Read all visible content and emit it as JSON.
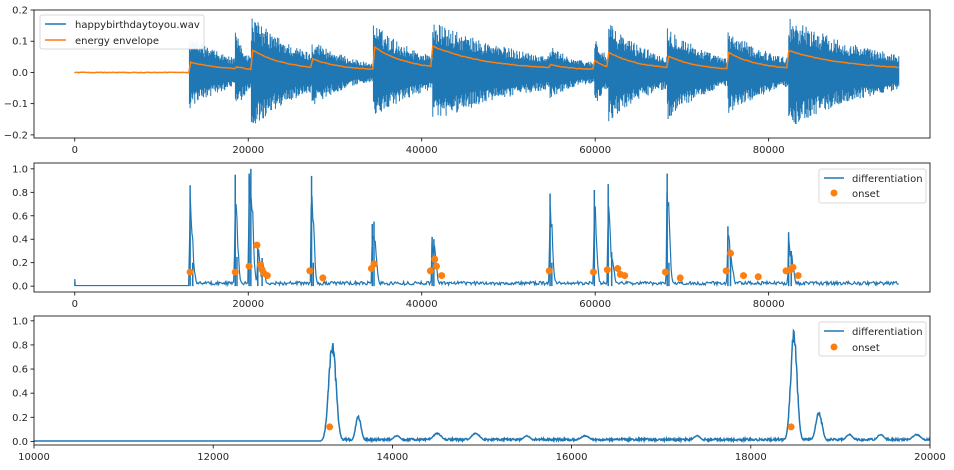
{
  "colors": {
    "series1": "#1f77b4",
    "series2": "#ff7f0e",
    "frame": "#000000",
    "text": "#262626"
  },
  "chart_data": [
    {
      "type": "line",
      "xlim": [
        -4700,
        98600
      ],
      "ylim": [
        -0.21,
        0.2
      ],
      "xticks": [
        0,
        20000,
        40000,
        60000,
        80000
      ],
      "xtick_labels": [
        "0",
        "20000",
        "40000",
        "60000",
        "80000"
      ],
      "yticks": [
        -0.2,
        -0.1,
        0.0,
        0.1,
        0.2
      ],
      "ytick_labels": [
        "−0.2",
        "−0.1",
        "0.0",
        "0.1",
        "0.2"
      ],
      "legend": {
        "position": "top-left",
        "entries": [
          "happybirthdaytoyou.wav",
          "energy envelope"
        ]
      },
      "series": [
        {
          "name": "happybirthdaytoyou.wav",
          "style": "line",
          "color": "#1f77b4",
          "x_range": [
            0,
            95000
          ],
          "silence_amplitude": 0.002,
          "bursts": [
            {
              "x": 13200,
              "peak": 0.125,
              "decay": 5200
            },
            {
              "x": 18500,
              "peak": 0.13,
              "decay": 1900
            },
            {
              "x": 20300,
              "peak": 0.185,
              "decay": 6500
            },
            {
              "x": 27300,
              "peak": 0.11,
              "decay": 5200
            },
            {
              "x": 34400,
              "peak": 0.16,
              "decay": 6200
            },
            {
              "x": 41200,
              "peak": 0.165,
              "decay": 12000
            },
            {
              "x": 54800,
              "peak": 0.085,
              "decay": 4400
            },
            {
              "x": 59900,
              "peak": 0.12,
              "decay": 1800
            },
            {
              "x": 61500,
              "peak": 0.16,
              "decay": 6000
            },
            {
              "x": 68300,
              "peak": 0.155,
              "decay": 5500
            },
            {
              "x": 75300,
              "peak": 0.135,
              "decay": 6500
            },
            {
              "x": 82300,
              "peak": 0.18,
              "decay": 11000
            }
          ]
        },
        {
          "name": "energy envelope",
          "style": "line",
          "color": "#ff7f0e",
          "x_range": [
            0,
            95000
          ],
          "bursts": [
            {
              "x": 13200,
              "peak": 0.035,
              "decay": 3500
            },
            {
              "x": 18500,
              "peak": 0.02,
              "decay": 1500
            },
            {
              "x": 20300,
              "peak": 0.075,
              "decay": 3800
            },
            {
              "x": 27300,
              "peak": 0.045,
              "decay": 3300
            },
            {
              "x": 34400,
              "peak": 0.085,
              "decay": 3800
            },
            {
              "x": 41200,
              "peak": 0.085,
              "decay": 6500
            },
            {
              "x": 54800,
              "peak": 0.025,
              "decay": 3000
            },
            {
              "x": 59900,
              "peak": 0.04,
              "decay": 1400
            },
            {
              "x": 61500,
              "peak": 0.065,
              "decay": 3800
            },
            {
              "x": 68300,
              "peak": 0.055,
              "decay": 3300
            },
            {
              "x": 75300,
              "peak": 0.065,
              "decay": 3600
            },
            {
              "x": 82300,
              "peak": 0.07,
              "decay": 7000
            }
          ]
        }
      ]
    },
    {
      "type": "line",
      "xlim": [
        -4700,
        98600
      ],
      "ylim": [
        -0.05,
        1.05
      ],
      "xticks": [
        0,
        20000,
        40000,
        60000,
        80000
      ],
      "xtick_labels": [
        "0",
        "20000",
        "40000",
        "60000",
        "80000"
      ],
      "yticks": [
        0.0,
        0.2,
        0.4,
        0.6,
        0.8,
        1.0
      ],
      "ytick_labels": [
        "0.0",
        "0.2",
        "0.4",
        "0.6",
        "0.8",
        "1.0"
      ],
      "legend": {
        "position": "top-right",
        "entries": [
          "differentiation",
          "onset"
        ]
      },
      "series": [
        {
          "name": "differentiation",
          "style": "line",
          "color": "#1f77b4",
          "x_range": [
            0,
            95000
          ],
          "start_spike": 0.06,
          "peaks": [
            {
              "x": 13300,
              "y": 0.86
            },
            {
              "x": 13600,
              "y": 0.2
            },
            {
              "x": 18500,
              "y": 0.95
            },
            {
              "x": 18700,
              "y": 0.25
            },
            {
              "x": 20100,
              "y": 0.96
            },
            {
              "x": 20300,
              "y": 1.0
            },
            {
              "x": 21100,
              "y": 0.35
            },
            {
              "x": 21600,
              "y": 0.24
            },
            {
              "x": 27300,
              "y": 0.94
            },
            {
              "x": 27500,
              "y": 0.2
            },
            {
              "x": 34300,
              "y": 0.53
            },
            {
              "x": 34500,
              "y": 0.55
            },
            {
              "x": 41200,
              "y": 0.42
            },
            {
              "x": 41400,
              "y": 0.4
            },
            {
              "x": 54800,
              "y": 0.79
            },
            {
              "x": 55000,
              "y": 0.2
            },
            {
              "x": 59900,
              "y": 0.82
            },
            {
              "x": 61500,
              "y": 0.87
            },
            {
              "x": 61900,
              "y": 0.29
            },
            {
              "x": 68300,
              "y": 0.96
            },
            {
              "x": 68500,
              "y": 0.2
            },
            {
              "x": 75300,
              "y": 0.51
            },
            {
              "x": 75600,
              "y": 0.3
            },
            {
              "x": 82300,
              "y": 0.46
            },
            {
              "x": 82600,
              "y": 0.3
            }
          ]
        },
        {
          "name": "onset",
          "style": "scatter",
          "color": "#ff7f0e",
          "points": [
            [
              13300,
              0.12
            ],
            [
              18500,
              0.12
            ],
            [
              20100,
              0.17
            ],
            [
              21000,
              0.35
            ],
            [
              21400,
              0.18
            ],
            [
              21600,
              0.14
            ],
            [
              21800,
              0.11
            ],
            [
              22200,
              0.09
            ],
            [
              27100,
              0.13
            ],
            [
              28600,
              0.07
            ],
            [
              34200,
              0.15
            ],
            [
              34500,
              0.19
            ],
            [
              41000,
              0.13
            ],
            [
              41500,
              0.23
            ],
            [
              41700,
              0.17
            ],
            [
              42300,
              0.09
            ],
            [
              54700,
              0.13
            ],
            [
              59800,
              0.12
            ],
            [
              61400,
              0.14
            ],
            [
              62600,
              0.15
            ],
            [
              62900,
              0.1
            ],
            [
              63400,
              0.09
            ],
            [
              68100,
              0.12
            ],
            [
              69800,
              0.07
            ],
            [
              75100,
              0.13
            ],
            [
              75600,
              0.28
            ],
            [
              77100,
              0.09
            ],
            [
              78800,
              0.08
            ],
            [
              82000,
              0.13
            ],
            [
              82500,
              0.14
            ],
            [
              82800,
              0.16
            ],
            [
              83400,
              0.09
            ]
          ]
        }
      ]
    },
    {
      "type": "line",
      "xlim": [
        10000,
        20000
      ],
      "ylim": [
        -0.03,
        1.04
      ],
      "xticks": [
        10000,
        12000,
        14000,
        16000,
        18000,
        20000
      ],
      "xtick_labels": [
        "10000",
        "12000",
        "14000",
        "16000",
        "18000",
        "20000"
      ],
      "yticks": [
        0.0,
        0.2,
        0.4,
        0.6,
        0.8,
        1.0
      ],
      "ytick_labels": [
        "0.0",
        "0.2",
        "0.4",
        "0.6",
        "0.8",
        "1.0"
      ],
      "legend": {
        "position": "top-right",
        "entries": [
          "differentiation",
          "onset"
        ]
      },
      "series": [
        {
          "name": "differentiation",
          "style": "line",
          "color": "#1f77b4",
          "peaks": [
            {
              "x": 13330,
              "y": 0.86,
              "width": 40
            },
            {
              "x": 13620,
              "y": 0.22,
              "width": 30
            },
            {
              "x": 14050,
              "y": 0.05,
              "width": 40
            },
            {
              "x": 14500,
              "y": 0.07,
              "width": 50
            },
            {
              "x": 14930,
              "y": 0.07,
              "width": 50
            },
            {
              "x": 15500,
              "y": 0.05,
              "width": 40
            },
            {
              "x": 16150,
              "y": 0.05,
              "width": 50
            },
            {
              "x": 17400,
              "y": 0.05,
              "width": 40
            },
            {
              "x": 18480,
              "y": 0.95,
              "width": 35
            },
            {
              "x": 18760,
              "y": 0.25,
              "width": 35
            },
            {
              "x": 19100,
              "y": 0.06,
              "width": 40
            },
            {
              "x": 19450,
              "y": 0.06,
              "width": 40
            },
            {
              "x": 19850,
              "y": 0.06,
              "width": 50
            }
          ]
        },
        {
          "name": "onset",
          "style": "scatter",
          "color": "#ff7f0e",
          "points": [
            [
              13300,
              0.12
            ],
            [
              18450,
              0.12
            ]
          ]
        }
      ]
    }
  ]
}
